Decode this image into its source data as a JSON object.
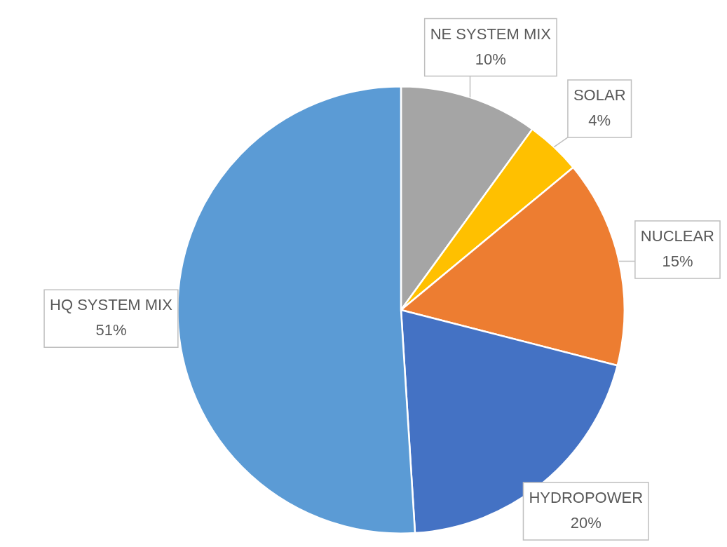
{
  "chart_data": {
    "type": "pie",
    "categories": [
      "NE SYSTEM MIX",
      "SOLAR",
      "NUCLEAR",
      "HYDROPOWER",
      "HQ SYSTEM MIX"
    ],
    "values": [
      10,
      4,
      15,
      20,
      51
    ],
    "colors": [
      "#a5a5a5",
      "#ffc000",
      "#ed7d31",
      "#4472c4",
      "#5b9bd5"
    ],
    "value_labels": [
      "10%",
      "4%",
      "15%",
      "20%",
      "51%"
    ],
    "legend": false
  }
}
